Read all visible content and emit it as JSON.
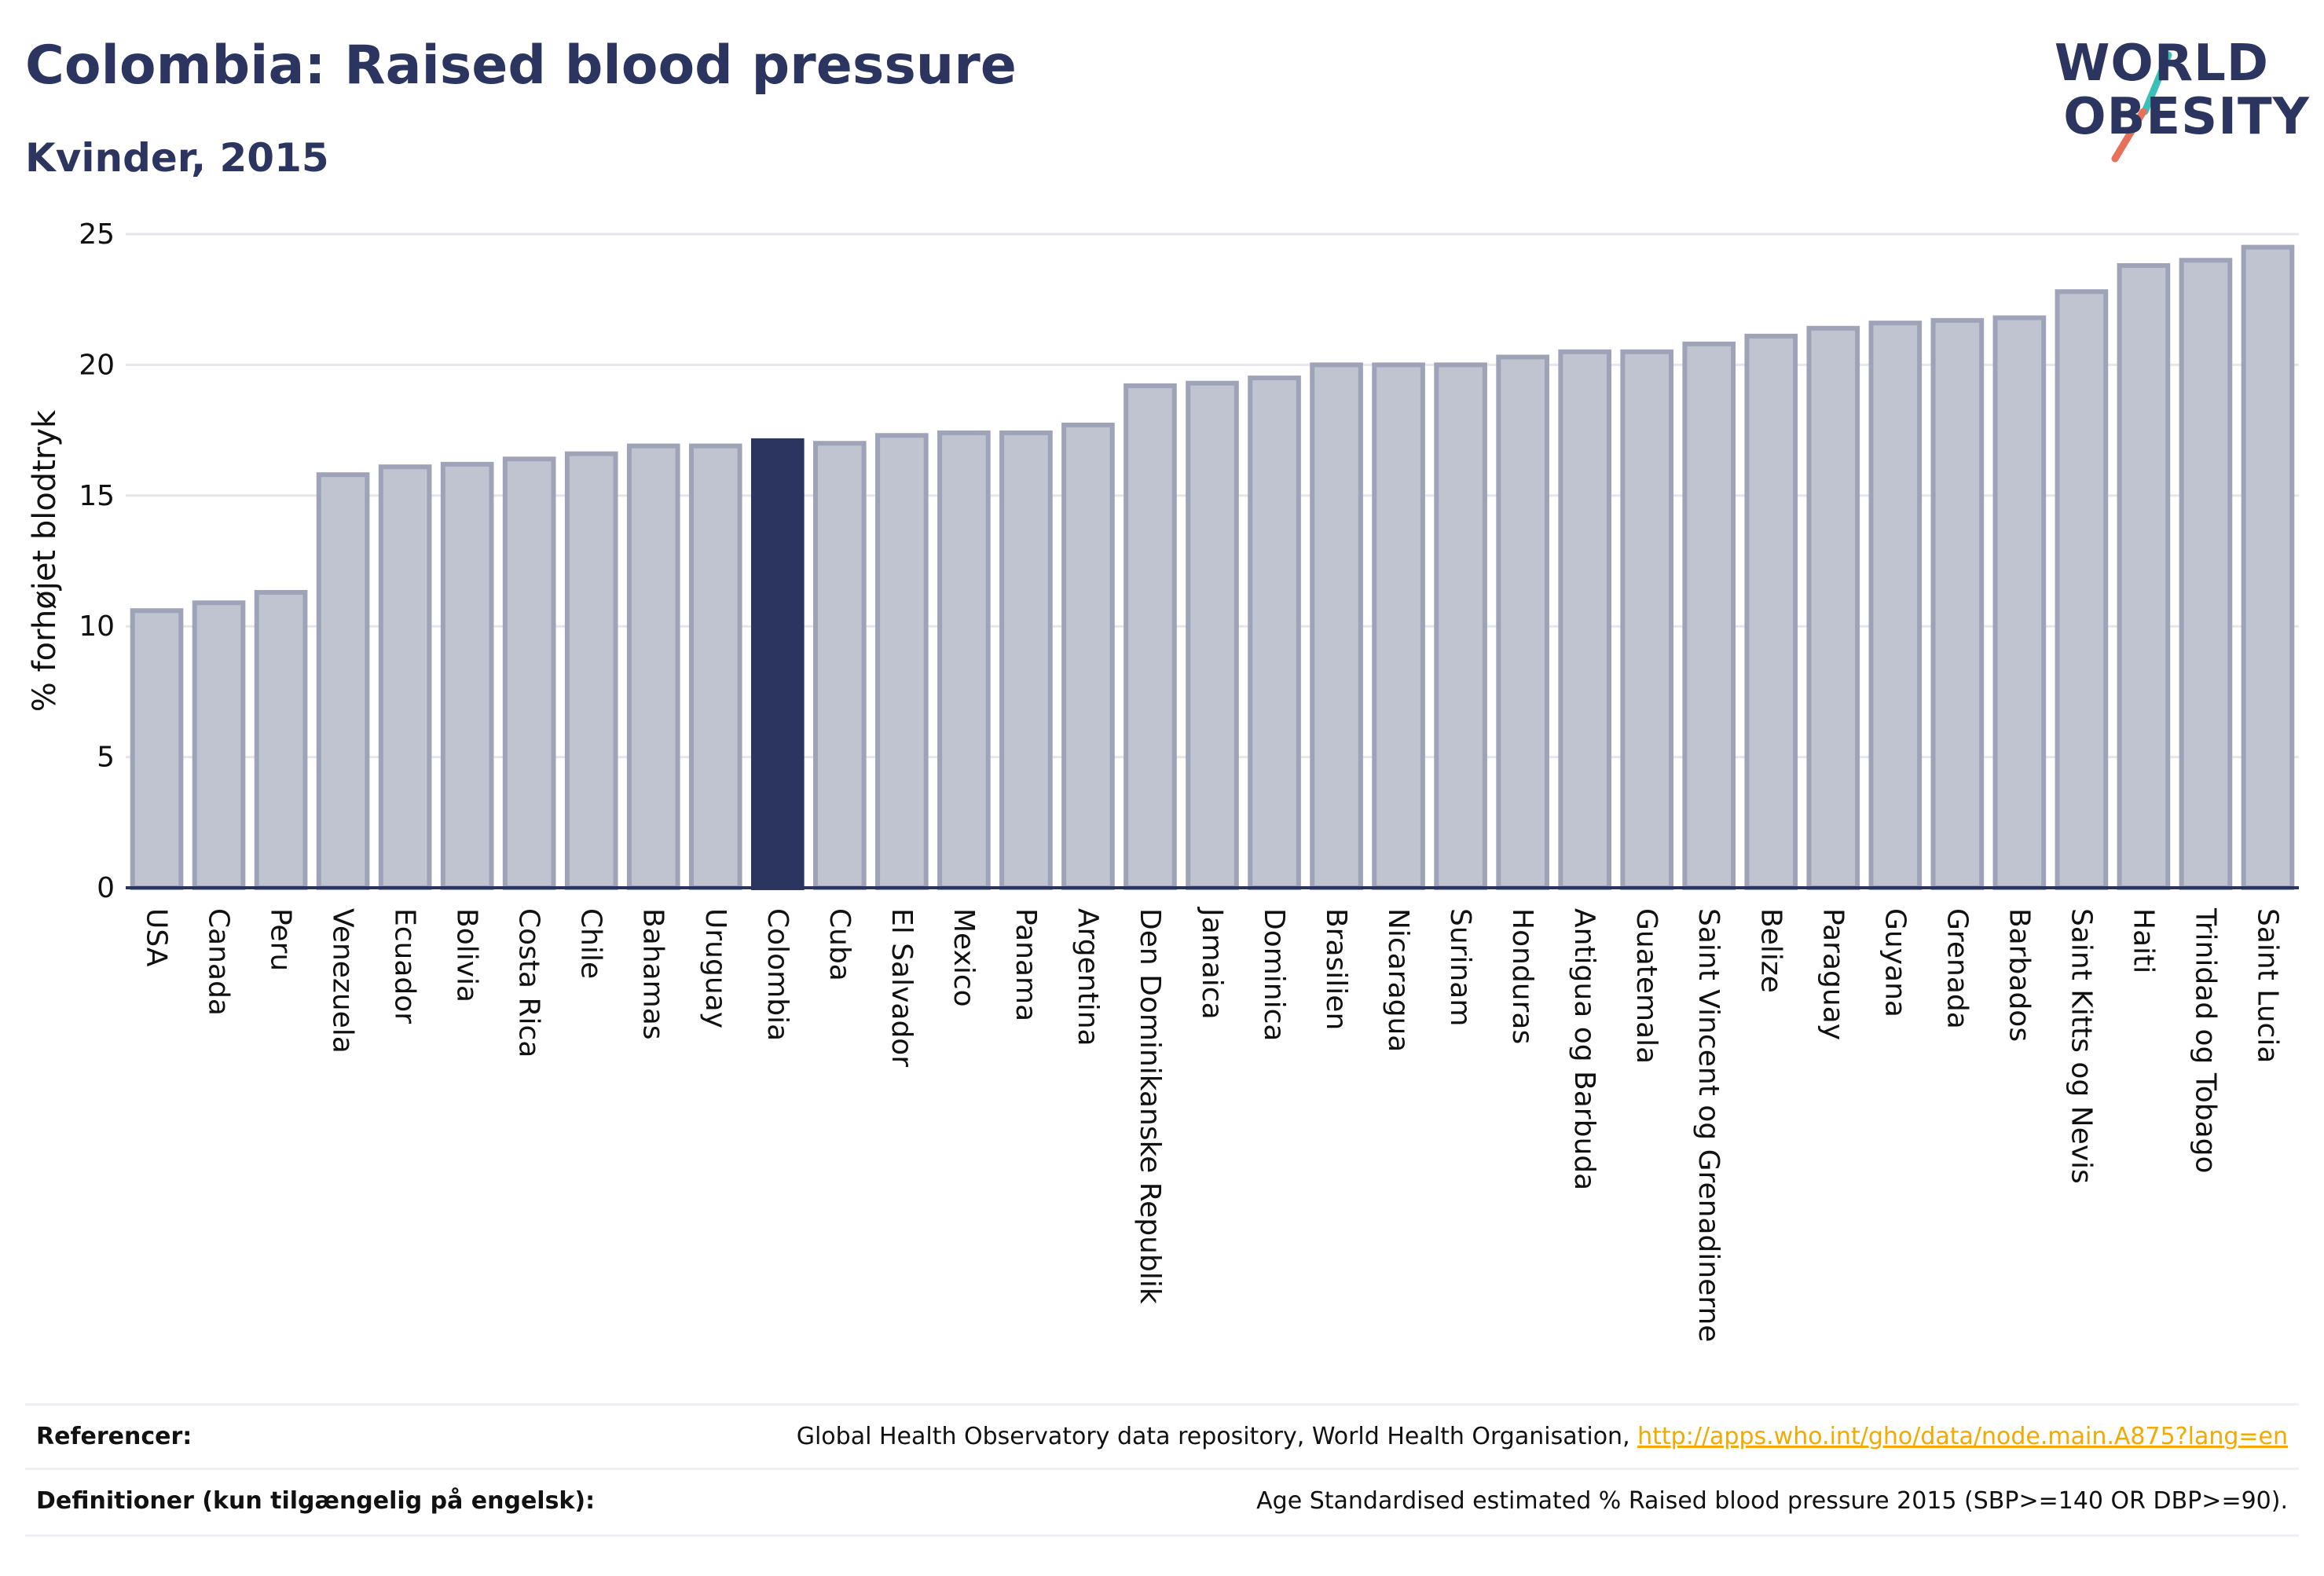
{
  "header": {
    "title": "Colombia: Raised blood pressure",
    "subtitle": "Kvinder, 2015"
  },
  "logo": {
    "line1": "WORLD",
    "line2": "OBESITY",
    "colors": {
      "text": "#2b3560",
      "slash_top": "#3bbfb6",
      "slash_bottom": "#e8705a"
    }
  },
  "chart_data": {
    "type": "bar",
    "ylabel": "% forhøjet blodtryk",
    "ylim": [
      0,
      25
    ],
    "yticks": [
      0,
      5,
      10,
      15,
      20,
      25
    ],
    "grid": true,
    "highlight": "Colombia",
    "colors": {
      "bar": "#c0c3d0",
      "bar_stroke": "#9ea3b8",
      "highlight": "#2b3560",
      "axis": "#2b3560",
      "grid": "#e4e6ec"
    },
    "categories": [
      "USA",
      "Canada",
      "Peru",
      "Venezuela",
      "Ecuador",
      "Bolivia",
      "Costa Rica",
      "Chile",
      "Bahamas",
      "Uruguay",
      "Colombia",
      "Cuba",
      "El Salvador",
      "Mexico",
      "Panama",
      "Argentina",
      "Den Dominikanske Republik",
      "Jamaica",
      "Dominica",
      "Brasilien",
      "Nicaragua",
      "Surinam",
      "Honduras",
      "Antigua og Barbuda",
      "Guatemala",
      "Saint Vincent og Grenadinerne",
      "Belize",
      "Paraguay",
      "Guyana",
      "Grenada",
      "Barbados",
      "Saint Kitts og Nevis",
      "Haiti",
      "Trinidad og Tobago",
      "Saint Lucia"
    ],
    "values": [
      10.6,
      10.9,
      11.3,
      15.8,
      16.1,
      16.2,
      16.4,
      16.6,
      16.9,
      16.9,
      17.1,
      17.0,
      17.3,
      17.4,
      17.4,
      17.7,
      19.2,
      19.3,
      19.5,
      20.0,
      20.0,
      20.0,
      20.3,
      20.5,
      20.5,
      20.8,
      21.1,
      21.4,
      21.6,
      21.7,
      21.8,
      22.8,
      23.8,
      24.0,
      24.5
    ]
  },
  "footer": {
    "references_label": "Referencer:",
    "references_text": "Global Health Observatory data repository, World Health Organisation, ",
    "references_link": "http://apps.who.int/gho/data/node.main.A875?lang=en",
    "definitions_label": "Definitioner (kun tilgængelig på engelsk):",
    "definitions_text": "Age Standardised estimated % Raised blood pressure 2015 (SBP>=140 OR DBP>=90)."
  }
}
